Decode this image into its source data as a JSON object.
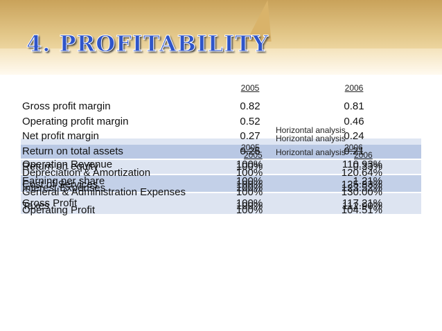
{
  "title": "4. PROFITABILITY",
  "ratios": {
    "headers": [
      "2005",
      "2006"
    ],
    "rows": [
      [
        "Gross profit margin",
        "0.82",
        "0.81"
      ],
      [
        "Operating profit margin",
        "0.52",
        "0.46"
      ],
      [
        "Net profit margin",
        "0.27",
        "0.24"
      ],
      [
        "Return on total assets",
        "0.25",
        "0.21"
      ]
    ]
  },
  "horizontal_analysis": {
    "caption": "Horizontal analysis",
    "headers": [
      "2005",
      "2006"
    ],
    "rows": [
      [
        "Operation Revenue",
        "100%",
        "110.93%"
      ],
      [
        "Return on equity",
        "100%",
        "0.33%"
      ],
      [
        "Depreciation & Amortization",
        "100%",
        "120.64%"
      ],
      [
        "Earning per share",
        "100%",
        "1.21%"
      ],
      [
        "Cost of Services",
        "100%",
        "125.33%"
      ],
      [
        "Interest Expenses",
        "100%",
        "123.52%"
      ],
      [
        "General & Administration Expenses",
        "100%",
        "130.00%"
      ],
      [
        "Gross Profit",
        "100%",
        "117.21%"
      ],
      [
        "Taxes",
        "100%",
        "112.90%"
      ],
      [
        "Operating Profit",
        "100%",
        "104.51%"
      ]
    ]
  }
}
